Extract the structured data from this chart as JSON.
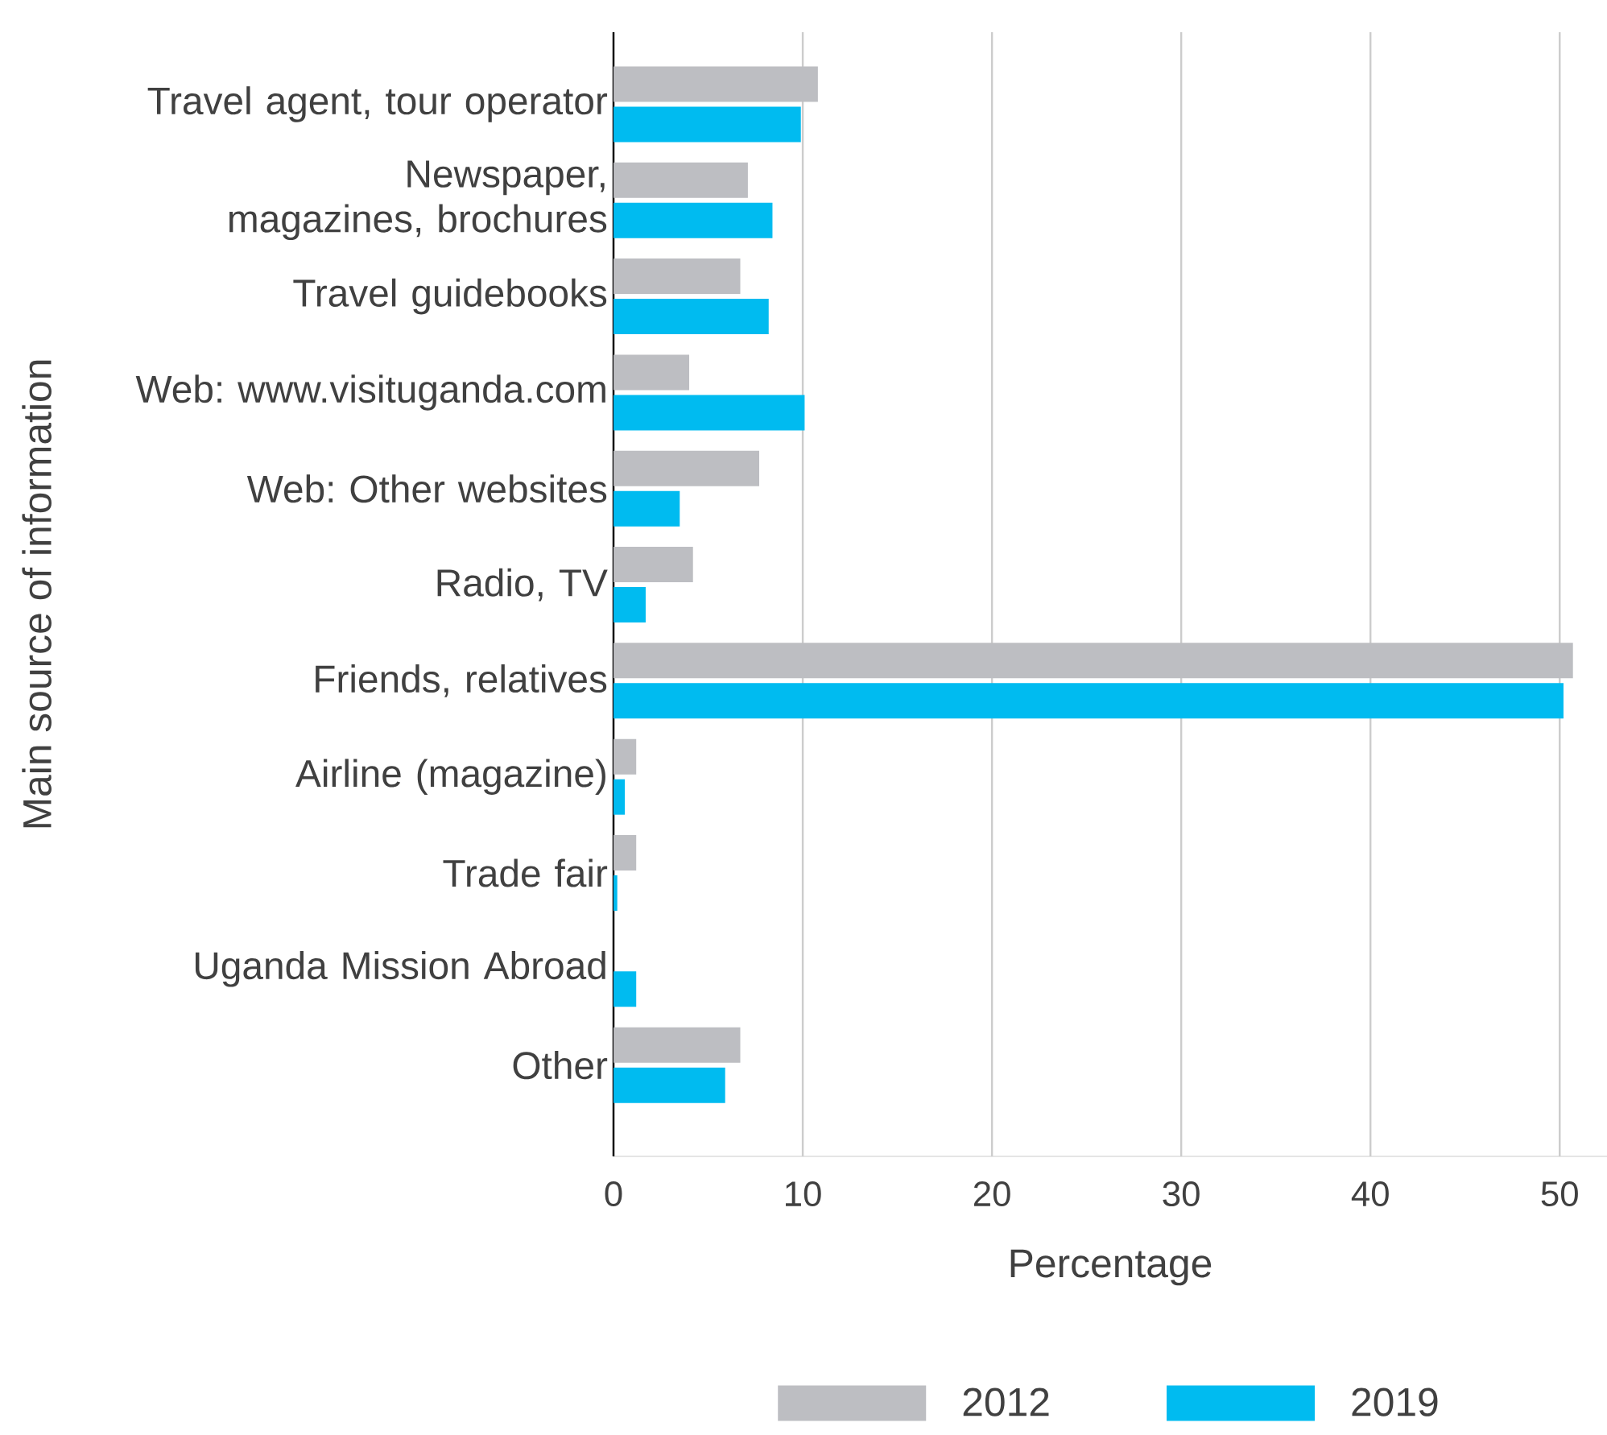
{
  "chart_data": {
    "type": "bar",
    "orientation": "horizontal",
    "xlabel": "Percentage",
    "ylabel": "Main source of information",
    "categories": [
      "Travel agent, tour operator",
      "Newspaper, magazines, brochures",
      "Travel guidebooks",
      "Web: www.visituganda.com",
      "Web: Other websites",
      "Radio, TV",
      "Friends, relatives",
      "Airline (magazine)",
      "Trade fair",
      "Uganda Mission Abroad",
      "Other"
    ],
    "series": [
      {
        "name": "2012",
        "color": "#bdbec2",
        "values": [
          10.8,
          7.1,
          6.7,
          4.0,
          7.7,
          4.2,
          50.7,
          1.2,
          1.2,
          0,
          6.7
        ]
      },
      {
        "name": "2019",
        "color": "#00bbf0",
        "values": [
          9.9,
          8.4,
          8.2,
          10.1,
          3.5,
          1.7,
          50.2,
          0.6,
          0.2,
          1.2,
          5.9
        ]
      }
    ],
    "xlim": [
      0,
      52.5
    ],
    "xticks": [
      0,
      10,
      20,
      30,
      40,
      50
    ],
    "grid": "x",
    "legend": "bottom"
  }
}
